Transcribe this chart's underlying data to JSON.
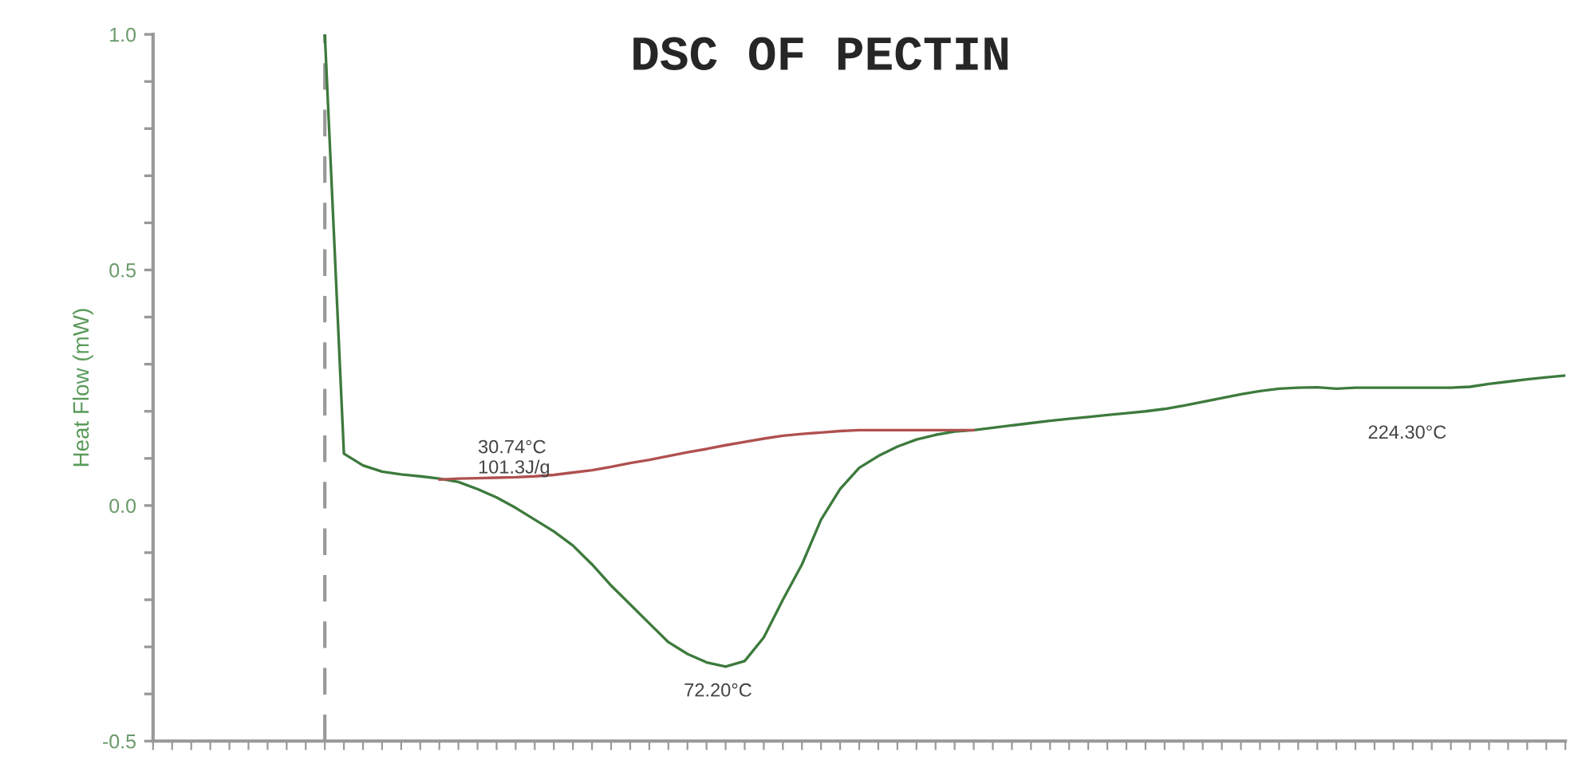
{
  "chart_data": {
    "type": "line",
    "title": "DSC OF PECTIN",
    "ylabel": "Heat Flow (mW)",
    "categories": [
      null,
      null,
      null,
      null,
      null,
      null,
      null,
      null,
      null,
      null,
      null,
      null,
      null,
      null,
      null,
      null,
      null,
      null,
      null,
      null,
      null,
      null,
      null,
      null,
      null,
      null,
      null,
      null,
      null,
      null,
      null,
      null,
      null,
      null,
      null,
      null,
      null,
      null,
      null,
      null,
      null,
      null,
      null,
      null,
      null,
      null,
      null,
      null,
      null,
      null,
      null,
      null,
      null,
      null,
      null,
      null,
      null,
      null,
      null,
      null,
      null,
      null,
      null,
      null,
      null,
      null,
      null,
      null,
      null,
      null,
      null,
      null,
      null,
      null,
      null
    ],
    "series": [
      {
        "color": "#3d7a3d",
        "values": [
          null,
          null,
          null,
          null,
          null,
          null,
          null,
          null,
          null,
          1.0,
          0.11,
          0.085,
          0.072,
          0.066,
          0.062,
          0.057,
          0.05,
          0.035,
          0.017,
          -0.005,
          -0.03,
          -0.055,
          -0.085,
          -0.125,
          -0.17,
          -0.21,
          -0.25,
          -0.29,
          -0.315,
          -0.333,
          -0.342,
          -0.33,
          -0.28,
          -0.2,
          -0.125,
          -0.03,
          0.035,
          0.08,
          0.105,
          0.125,
          0.14,
          0.15,
          0.157,
          0.16,
          0.165,
          0.17,
          0.175,
          0.18,
          0.184,
          0.188,
          0.192,
          0.196,
          0.2,
          0.205,
          0.212,
          0.22,
          0.228,
          0.236,
          0.243,
          0.248,
          0.25,
          0.251,
          0.248,
          0.25,
          0.25,
          0.25,
          0.25,
          0.25,
          0.25,
          0.252,
          0.258,
          0.263,
          0.268,
          0.272,
          0.276
        ]
      },
      {
        "color": "#b05050",
        "values": [
          null,
          null,
          null,
          null,
          null,
          null,
          null,
          null,
          null,
          null,
          null,
          null,
          null,
          null,
          null,
          0.055,
          0.057,
          0.058,
          0.059,
          0.06,
          0.062,
          0.065,
          0.07,
          0.075,
          0.082,
          0.09,
          0.097,
          0.105,
          0.113,
          0.12,
          0.128,
          0.135,
          0.142,
          0.148,
          0.152,
          0.155,
          0.158,
          0.16,
          0.16,
          0.16,
          0.16,
          0.16,
          0.16,
          0.16,
          null,
          null,
          null,
          null,
          null,
          null,
          null,
          null,
          null,
          null,
          null,
          null,
          null,
          null,
          null,
          null,
          null,
          null,
          null,
          null,
          null,
          null,
          null,
          null,
          null,
          null,
          null,
          null,
          null,
          null,
          null
        ]
      }
    ],
    "ylim": [
      -0.5,
      1.0
    ],
    "yticks": [
      {
        "value": -0.5,
        "label": "-0.5"
      },
      {
        "value": -0.4,
        "label": null
      },
      {
        "value": -0.3,
        "label": null
      },
      {
        "value": -0.2,
        "label": null
      },
      {
        "value": -0.1,
        "label": null
      },
      {
        "value": 0,
        "label": "0.0"
      },
      {
        "value": 0.1,
        "label": null
      },
      {
        "value": 0.2,
        "label": null
      },
      {
        "value": 0.3,
        "label": null
      },
      {
        "value": 0.4,
        "label": null
      },
      {
        "value": 0.5,
        "label": "0.5"
      },
      {
        "value": 0.6,
        "label": null
      },
      {
        "value": 0.7,
        "label": null
      },
      {
        "value": 0.8,
        "label": null
      },
      {
        "value": 0.9,
        "label": null
      },
      {
        "value": 1.0,
        "label": "1.0"
      }
    ],
    "annotations": [
      "30.74°C\n101.3J/g",
      "72.20°C",
      "224.30°C"
    ],
    "grid": false,
    "legend": false,
    "tick_labels": "y"
  }
}
